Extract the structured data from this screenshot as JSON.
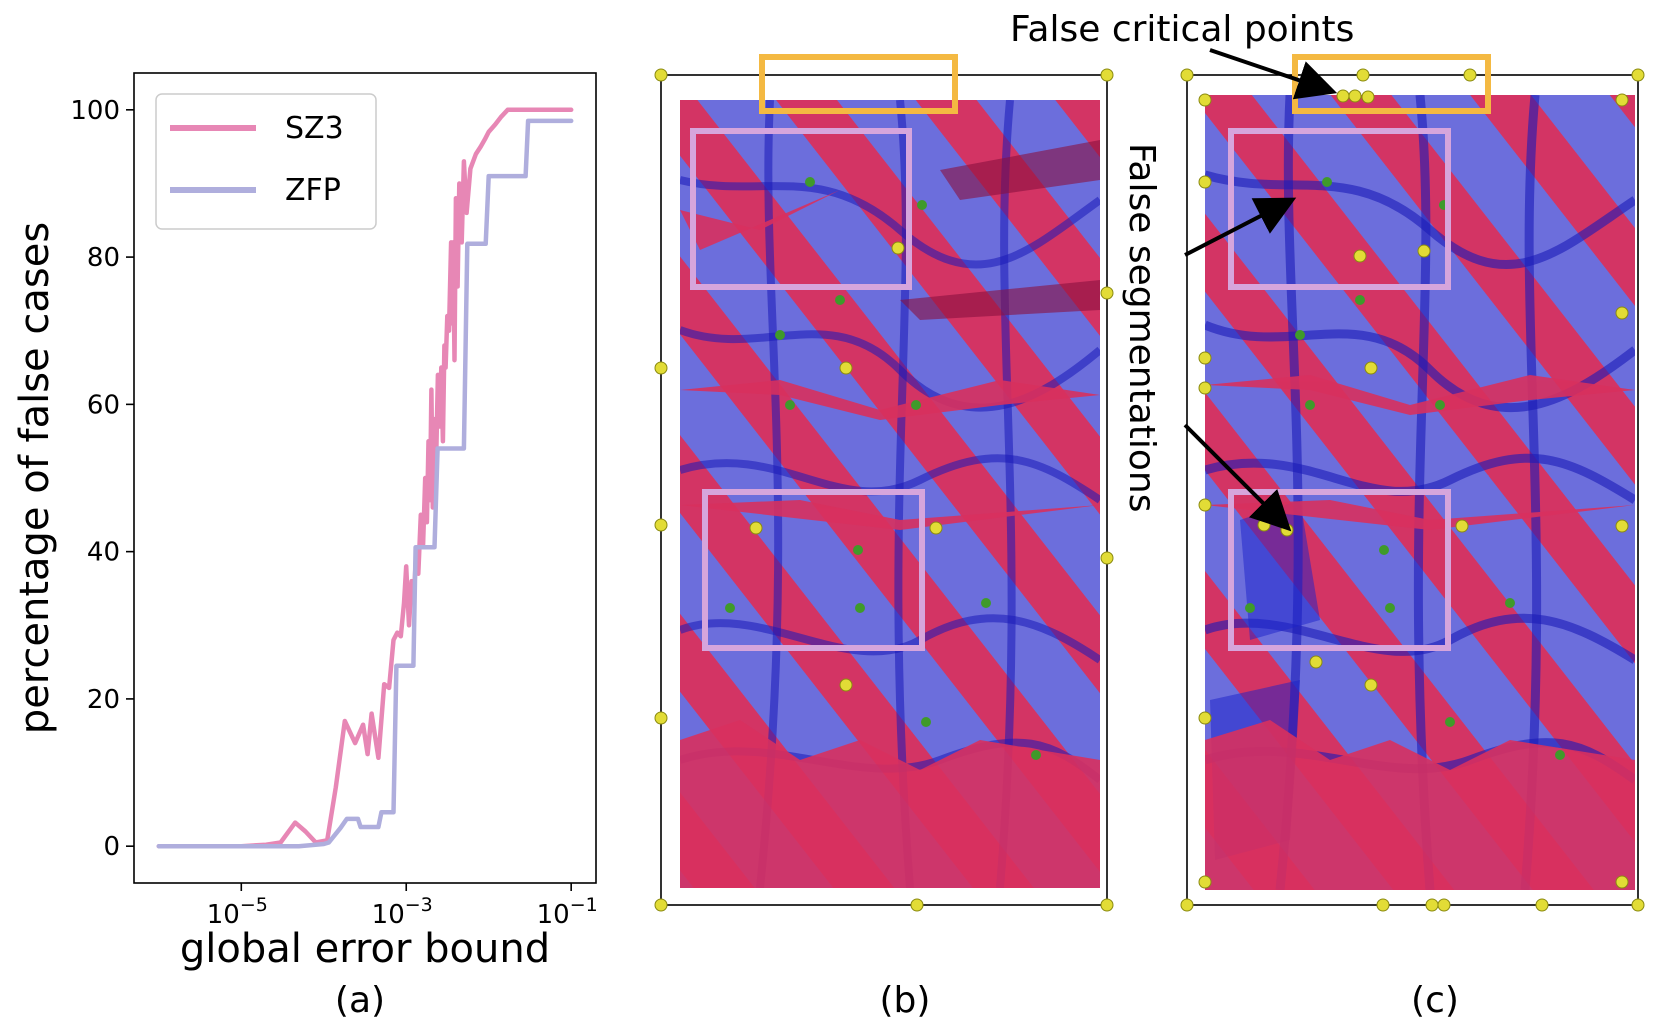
{
  "chart_data": {
    "type": "line",
    "xlabel": "global error bound",
    "ylabel": "percentage of false cases",
    "xscale": "log",
    "xlim": [
      5e-07,
      0.2
    ],
    "ylim": [
      -5,
      105
    ],
    "yticks": [
      0,
      20,
      40,
      60,
      80,
      100
    ],
    "xtick_labels": [
      {
        "value": 1e-05,
        "base": "10",
        "exp": "−5"
      },
      {
        "value": 0.001,
        "base": "10",
        "exp": "−3"
      },
      {
        "value": 0.1,
        "base": "10",
        "exp": "−1"
      }
    ],
    "legend_position": "top-left",
    "grid": false,
    "series": [
      {
        "name": "SZ3",
        "color": "#e787b5",
        "points": [
          [
            1e-06,
            0
          ],
          [
            1e-05,
            0
          ],
          [
            2e-05,
            0.2
          ],
          [
            3e-05,
            0.5
          ],
          [
            4.5e-05,
            3.2
          ],
          [
            6e-05,
            2
          ],
          [
            8e-05,
            0.5
          ],
          [
            0.00011,
            0.8
          ],
          [
            0.00014,
            8
          ],
          [
            0.00018,
            17
          ],
          [
            0.00024,
            14
          ],
          [
            0.0003,
            16.5
          ],
          [
            0.00034,
            12.5
          ],
          [
            0.00038,
            18
          ],
          [
            0.00046,
            12
          ],
          [
            0.00054,
            22
          ],
          [
            0.00062,
            21.5
          ],
          [
            0.0007,
            28
          ],
          [
            0.00078,
            29
          ],
          [
            0.00086,
            28.5
          ],
          [
            0.00094,
            33
          ],
          [
            0.001,
            38
          ],
          [
            0.00108,
            30
          ],
          [
            0.00116,
            36
          ],
          [
            0.00124,
            34
          ],
          [
            0.00132,
            40
          ],
          [
            0.0014,
            37
          ],
          [
            0.0015,
            45
          ],
          [
            0.0016,
            41
          ],
          [
            0.0017,
            50
          ],
          [
            0.00178,
            44
          ],
          [
            0.00186,
            55
          ],
          [
            0.00194,
            47
          ],
          [
            0.00202,
            62
          ],
          [
            0.0021,
            46
          ],
          [
            0.0022,
            58
          ],
          [
            0.0023,
            52
          ],
          [
            0.00242,
            64
          ],
          [
            0.00254,
            57
          ],
          [
            0.00266,
            65
          ],
          [
            0.00278,
            55
          ],
          [
            0.0029,
            68
          ],
          [
            0.003,
            65
          ],
          [
            0.00315,
            72
          ],
          [
            0.0033,
            70
          ],
          [
            0.0035,
            82
          ],
          [
            0.0036,
            71
          ],
          [
            0.0037,
            82
          ],
          [
            0.00385,
            66
          ],
          [
            0.004,
            88
          ],
          [
            0.0042,
            76
          ],
          [
            0.0044,
            90
          ],
          [
            0.0047,
            82
          ],
          [
            0.005,
            93
          ],
          [
            0.0054,
            86
          ],
          [
            0.006,
            92
          ],
          [
            0.007,
            94
          ],
          [
            0.008,
            95
          ],
          [
            0.009,
            96
          ],
          [
            0.01,
            97
          ],
          [
            0.012,
            98
          ],
          [
            0.014,
            99
          ],
          [
            0.017,
            100
          ],
          [
            0.1,
            100
          ]
        ]
      },
      {
        "name": "ZFP",
        "color": "#afaedd",
        "points": [
          [
            1e-06,
            0
          ],
          [
            1e-05,
            0
          ],
          [
            5e-05,
            0
          ],
          [
            0.0001,
            0.3
          ],
          [
            0.000115,
            0.5
          ],
          [
            0.00016,
            2.5
          ],
          [
            0.00019,
            3.7
          ],
          [
            0.00026,
            3.7
          ],
          [
            0.00028,
            2.6
          ],
          [
            0.00046,
            2.6
          ],
          [
            0.0005,
            4.6
          ],
          [
            0.0007,
            4.6
          ],
          [
            0.00076,
            24.5
          ],
          [
            0.00122,
            24.5
          ],
          [
            0.0013,
            40.6
          ],
          [
            0.0022,
            40.6
          ],
          [
            0.0024,
            54
          ],
          [
            0.005,
            54
          ],
          [
            0.0055,
            81.8
          ],
          [
            0.0092,
            81.8
          ],
          [
            0.01,
            91
          ],
          [
            0.028,
            91
          ],
          [
            0.03,
            98.5
          ],
          [
            0.1,
            98.5
          ]
        ]
      }
    ]
  },
  "panels": {
    "a": {
      "label": "(a)"
    },
    "b": {
      "label": "(b)"
    },
    "c": {
      "label": "(c)"
    }
  },
  "annotations": {
    "false_critical_points": "False critical points",
    "false_segmentations": "False segmentations"
  },
  "colors": {
    "highlight_orange": "#f4b942",
    "highlight_violet": "#d6a5dc",
    "surface_red": "#d8305e",
    "surface_blue": "#4a4ed8",
    "critical_yellow": "#e2dc36",
    "critical_green": "#3f9a2a"
  }
}
